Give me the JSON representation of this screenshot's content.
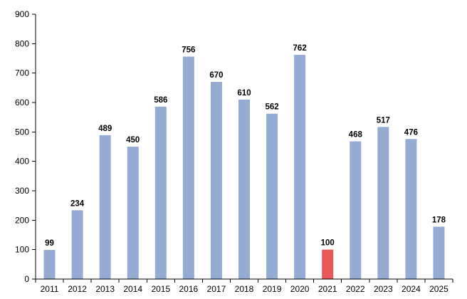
{
  "chart_data": {
    "type": "bar",
    "title": "",
    "xlabel": "",
    "ylabel": "",
    "categories": [
      "2011",
      "2012",
      "2013",
      "2014",
      "2015",
      "2016",
      "2017",
      "2018",
      "2019",
      "2020",
      "2021",
      "2022",
      "2023",
      "2024",
      "2025"
    ],
    "values": [
      99,
      234,
      489,
      450,
      586,
      756,
      670,
      610,
      562,
      762,
      100,
      468,
      517,
      476,
      178
    ],
    "data_labels": [
      "99",
      "234",
      "489",
      "450",
      "586",
      "756",
      "670",
      "610",
      "562",
      "762",
      "100",
      "468",
      "517",
      "476",
      "178"
    ],
    "highlight_category": "2021",
    "ylim": [
      0,
      900
    ],
    "yticks": [
      0,
      100,
      200,
      300,
      400,
      500,
      600,
      700,
      800,
      900
    ],
    "grid": false,
    "legend": "none",
    "colors": {
      "bar": "#94acd4",
      "highlight": "#e8585a",
      "axis": "#000000",
      "text": "#000000"
    }
  }
}
